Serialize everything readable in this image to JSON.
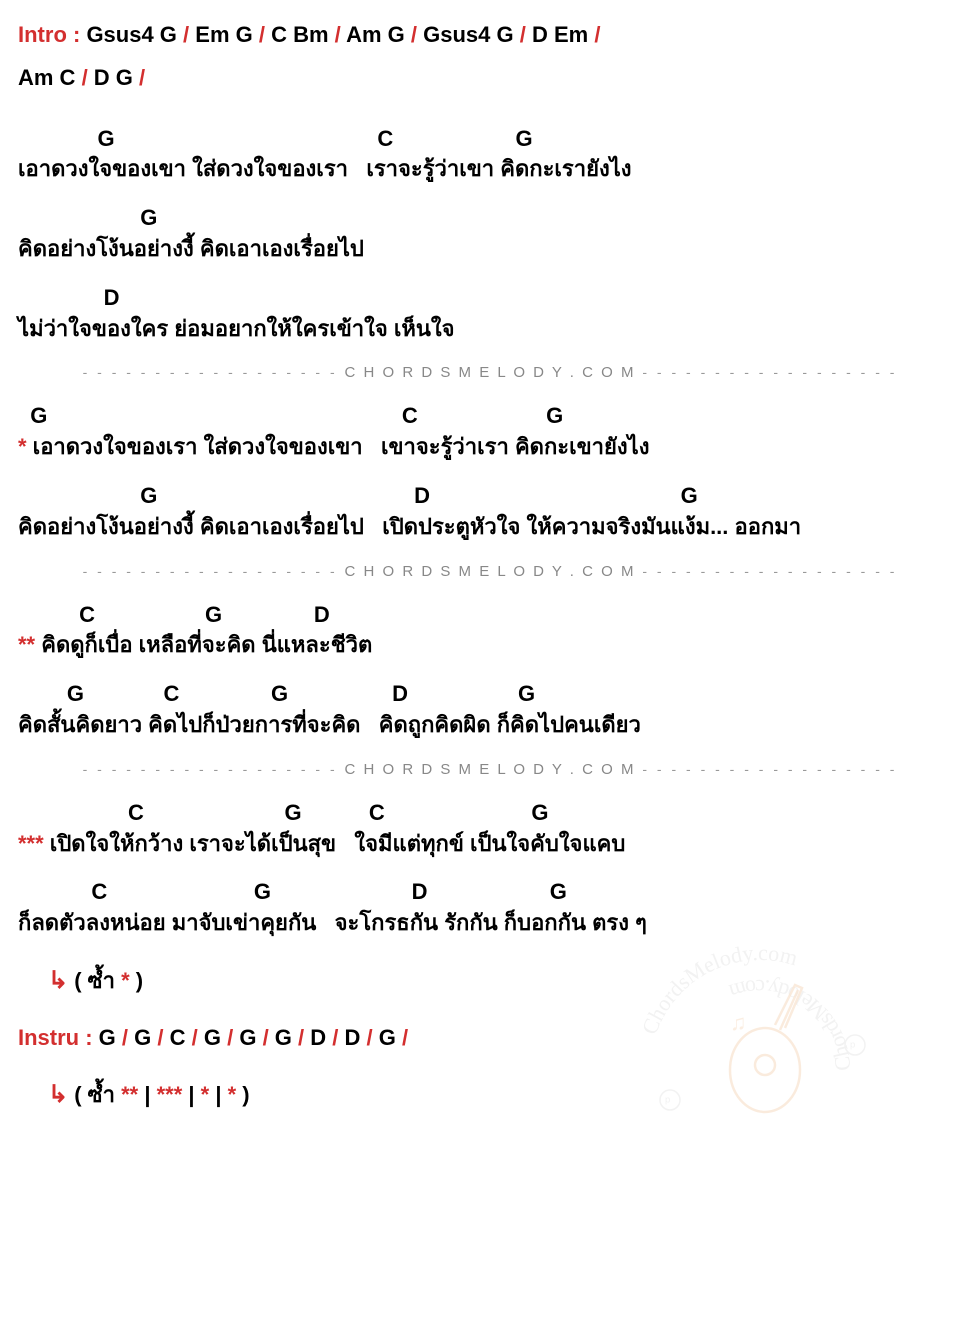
{
  "intro": {
    "label": "Intro :",
    "line1": " Gsus4  G  /  Em  G  /  C  Bm  /  Am  G  /  Gsus4  G  /  D  Em  /",
    "line2": " Am  C  /  D  G  /"
  },
  "verse1": {
    "pair1": {
      "chords": "             G                                           C                    G",
      "lyrics": "เอาดวงใจของเขา ใส่ดวงใจของเรา   เราจะรู้ว่าเขา คิดกะเรายังไง"
    },
    "pair2": {
      "chords": "                    G",
      "lyrics": "คิดอย่างโง้นอย่างงี้ คิดเอาเองเรื่อยไป"
    },
    "pair3": {
      "chords": "              D",
      "lyrics": "ไม่ว่าใจของใคร ย่อมอยากให้ใครเข้าใจ เห็นใจ"
    }
  },
  "separator": {
    "dashes": "- - - - - - - - - - - - - - - - - -",
    "text": "C H O R D S M E L O D Y . C O M"
  },
  "verse2": {
    "star": "*",
    "pair1": {
      "chords": "  G                                                          C                     G",
      "lyrics": " เอาดวงใจของเรา ใส่ดวงใจของเขา   เขาจะรู้ว่าเรา คิดกะเขายังไง"
    },
    "pair2": {
      "chords": "                    G                                          D                                         G",
      "lyrics": "คิดอย่างโง้นอย่างงี้ คิดเอาเองเรื่อยไป   เปิดประตูหัวใจ ให้ความจริงมันแง้ม... ออกมา"
    }
  },
  "verse3": {
    "star": "**",
    "pair1": {
      "chords": "          C                  G               D",
      "lyrics": " คิดดูก็เบื่อ เหลือที่จะคิด นี่แหละชีวิต"
    },
    "pair2": {
      "chords": "        G             C               G                 D                  G",
      "lyrics": "คิดสั้นคิดยาว คิดไปก็ป่วยการที่จะคิด   คิดถูกคิดผิด ก็คิดไปคนเดียว"
    }
  },
  "verse4": {
    "star": "***",
    "pair1": {
      "chords": "                  C                       G           C                        G",
      "lyrics": " เปิดใจให้กว้าง เราจะได้เป็นสุข   ใจมีแต่ทุกข์ เป็นใจคับใจแคบ"
    },
    "pair2": {
      "chords": "            C                        G                       D                    G",
      "lyrics": "ก็ลดตัวลงหน่อย มาจับเข่าคุยกัน   จะโกรธกัน รักกัน ก็บอกกัน ตรง ๆ"
    }
  },
  "repeat1": {
    "arrow": "↳",
    "text": "( ซ้ำ ",
    "star": "*",
    "close": " )"
  },
  "instru": {
    "label": "Instru :",
    "chords": " G  /  G  /  C  /  G  /  G  /  G  /  D  /  D  /  G  /"
  },
  "repeat2": {
    "arrow": "↳",
    "text": "( ซ้ำ ",
    "s1": "**",
    "sep": " | ",
    "s2": "***",
    "s3": "*",
    "s4": "*",
    "close": " )"
  },
  "colors": {
    "red": "#d32f2f",
    "black": "#000000",
    "gray": "#999999",
    "bg": "#ffffff"
  },
  "watermark": {
    "text1": "ChordsMelody",
    "text2": ".com"
  }
}
